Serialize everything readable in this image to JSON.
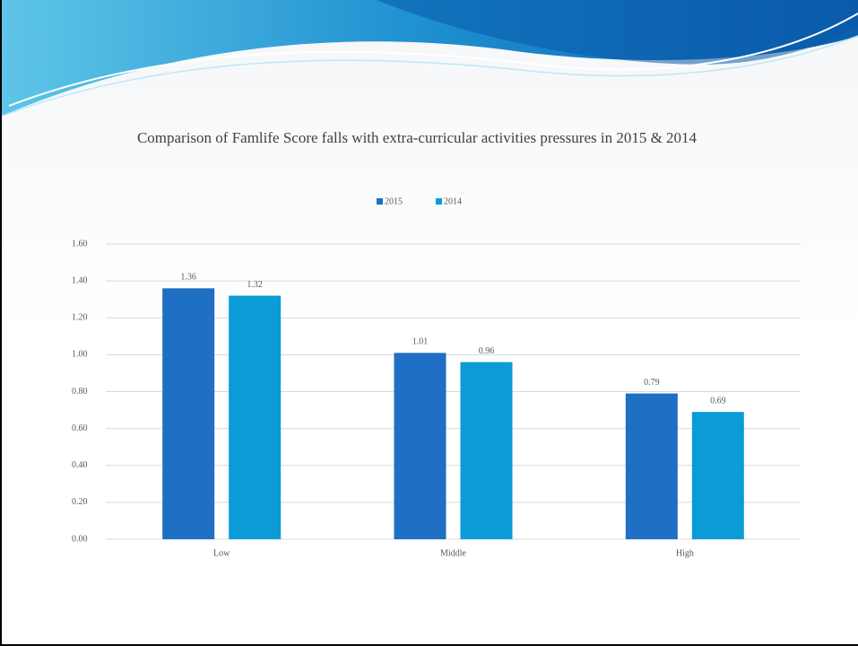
{
  "chart_data": {
    "type": "bar",
    "title": "Comparison of Famlife Score falls with extra-curricular activities pressures in 2015 & 2014",
    "categories": [
      "Low",
      "Middle",
      "High"
    ],
    "series": [
      {
        "name": "2015",
        "color": "#1f6fc5",
        "values": [
          1.36,
          1.01,
          0.79
        ]
      },
      {
        "name": "2014",
        "color": "#0b9bd7",
        "values": [
          1.32,
          0.96,
          0.69
        ]
      }
    ],
    "ylim": [
      0,
      1.6
    ],
    "yticks": [
      {
        "value": 0,
        "label": "0.00"
      },
      {
        "value": 0.2,
        "label": "0.20"
      },
      {
        "value": 0.4,
        "label": "0.40"
      },
      {
        "value": 0.6,
        "label": "0.60"
      },
      {
        "value": 0.8,
        "label": "0.80"
      },
      {
        "value": 1.0,
        "label": "1.00"
      },
      {
        "value": 1.2,
        "label": "1.20"
      },
      {
        "value": 1.4,
        "label": "1.40"
      },
      {
        "value": 1.6,
        "label": "1.60"
      }
    ],
    "grid": true,
    "legend": "top"
  }
}
